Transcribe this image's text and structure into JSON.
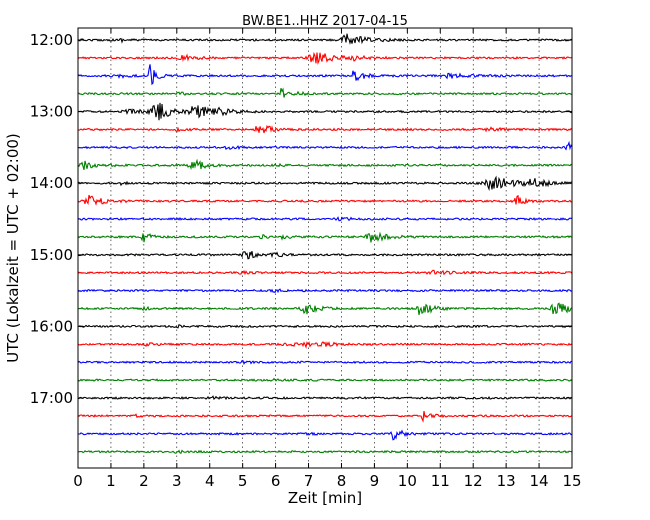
{
  "chart_data": {
    "type": "line",
    "title": "BW.BE1..HHZ 2017-04-15",
    "xlabel": "Zeit  [min]",
    "ylabel": "UTC (Lokalzeit = UTC + 02:00)",
    "xlim": [
      0,
      15
    ],
    "x_ticks": [
      "0",
      "1",
      "2",
      "3",
      "4",
      "5",
      "6",
      "7",
      "8",
      "9",
      "10",
      "11",
      "12",
      "13",
      "14",
      "15"
    ],
    "y_tick_labels": [
      "12:00",
      "13:00",
      "14:00",
      "15:00",
      "16:00",
      "17:00"
    ],
    "grid": "dotted vertical",
    "trace_colors": [
      "#000000",
      "#ff0000",
      "#0000ff",
      "#008000"
    ],
    "series": [
      {
        "offset": "12:00",
        "color": "#000000",
        "events": [
          [
            8.2,
            0.45,
            0.5
          ],
          [
            1.3,
            0.1,
            0.2
          ]
        ]
      },
      {
        "offset": "12:15",
        "color": "#ff0000",
        "events": [
          [
            3.2,
            0.25,
            0.3
          ],
          [
            7.2,
            0.5,
            0.5
          ],
          [
            8.4,
            0.15,
            0.3
          ]
        ]
      },
      {
        "offset": "12:30",
        "color": "#0000ff",
        "events": [
          [
            2.2,
            0.9,
            0.15
          ],
          [
            8.4,
            0.45,
            0.3
          ],
          [
            11.3,
            0.2,
            0.6
          ],
          [
            1.3,
            0.15,
            0.2
          ]
        ]
      },
      {
        "offset": "12:45",
        "color": "#008000",
        "events": [
          [
            6.2,
            0.4,
            0.3
          ],
          [
            3.1,
            0.12,
            0.2
          ]
        ]
      },
      {
        "offset": "13:00",
        "color": "#000000",
        "events": [
          [
            2.4,
            0.75,
            0.4
          ],
          [
            3.6,
            0.55,
            0.5
          ],
          [
            1.5,
            0.2,
            0.4
          ],
          [
            4.3,
            0.15,
            0.3
          ]
        ]
      },
      {
        "offset": "13:15",
        "color": "#ff0000",
        "events": [
          [
            5.5,
            0.5,
            0.3
          ],
          [
            3.0,
            0.12,
            0.2
          ],
          [
            12.5,
            0.12,
            0.4
          ]
        ]
      },
      {
        "offset": "13:30",
        "color": "#0000ff",
        "events": [
          [
            14.9,
            0.35,
            0.2
          ],
          [
            4.5,
            0.12,
            0.3
          ]
        ]
      },
      {
        "offset": "13:45",
        "color": "#008000",
        "events": [
          [
            0.2,
            0.3,
            0.3
          ],
          [
            3.5,
            0.4,
            0.4
          ],
          [
            6.0,
            0.3,
            0.1
          ],
          [
            1.0,
            0.2,
            0.1
          ]
        ]
      },
      {
        "offset": "14:00",
        "color": "#000000",
        "events": [
          [
            12.6,
            0.5,
            0.7
          ],
          [
            13.8,
            0.35,
            0.3
          ],
          [
            1.3,
            0.15,
            0.1
          ]
        ]
      },
      {
        "offset": "14:15",
        "color": "#ff0000",
        "events": [
          [
            0.3,
            0.45,
            0.4
          ],
          [
            13.3,
            0.5,
            0.2
          ]
        ]
      },
      {
        "offset": "14:30",
        "color": "#0000ff",
        "events": [
          [
            8.0,
            0.1,
            0.5
          ]
        ]
      },
      {
        "offset": "14:45",
        "color": "#008000",
        "events": [
          [
            2.0,
            0.35,
            0.2
          ],
          [
            8.9,
            0.4,
            0.4
          ],
          [
            6.2,
            0.15,
            0.2
          ],
          [
            5.6,
            0.12,
            0.2
          ]
        ]
      },
      {
        "offset": "15:00",
        "color": "#000000",
        "events": [
          [
            5.1,
            0.4,
            0.3
          ],
          [
            6.0,
            0.1,
            0.3
          ]
        ]
      },
      {
        "offset": "15:15",
        "color": "#ff0000",
        "events": [
          [
            4.9,
            0.12,
            0.3
          ],
          [
            10.8,
            0.12,
            0.6
          ]
        ]
      },
      {
        "offset": "15:30",
        "color": "#0000ff",
        "events": [
          [
            6.0,
            0.08,
            0.3
          ]
        ]
      },
      {
        "offset": "15:45",
        "color": "#008000",
        "events": [
          [
            6.9,
            0.45,
            0.3
          ],
          [
            10.4,
            0.55,
            0.3
          ],
          [
            14.5,
            0.5,
            0.4
          ],
          [
            2.0,
            0.12,
            0.2
          ]
        ]
      },
      {
        "offset": "16:00",
        "color": "#000000",
        "events": [
          [
            3.0,
            0.08,
            0.3
          ]
        ]
      },
      {
        "offset": "16:15",
        "color": "#ff0000",
        "events": [
          [
            6.5,
            0.35,
            0.5
          ],
          [
            2.1,
            0.12,
            0.2
          ],
          [
            7.5,
            0.1,
            0.3
          ]
        ]
      },
      {
        "offset": "16:30",
        "color": "#0000ff",
        "events": [
          [
            5.0,
            0.06,
            0.3
          ]
        ]
      },
      {
        "offset": "16:45",
        "color": "#008000",
        "events": [
          [
            6.0,
            0.06,
            0.3
          ]
        ]
      },
      {
        "offset": "17:00",
        "color": "#000000",
        "events": [
          [
            4.0,
            0.08,
            0.3
          ]
        ]
      },
      {
        "offset": "17:15",
        "color": "#ff0000",
        "events": [
          [
            10.5,
            0.35,
            0.2
          ],
          [
            1.8,
            0.08,
            0.2
          ]
        ]
      },
      {
        "offset": "17:30",
        "color": "#0000ff",
        "events": [
          [
            9.6,
            0.55,
            0.2
          ],
          [
            7.0,
            0.06,
            0.2
          ]
        ]
      },
      {
        "offset": "17:45",
        "color": "#008000",
        "events": [
          [
            3.0,
            0.06,
            0.3
          ]
        ]
      }
    ]
  }
}
